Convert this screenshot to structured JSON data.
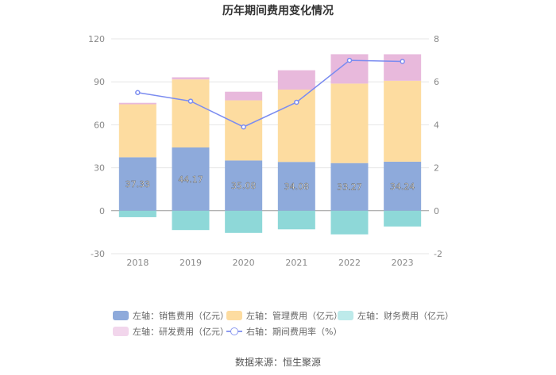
{
  "title": "历年期间费用变化情况",
  "source": "数据来源：恒生聚源",
  "chart_data": {
    "type": "bar",
    "stacked": true,
    "categories": [
      "2018",
      "2019",
      "2020",
      "2021",
      "2022",
      "2023"
    ],
    "left_axis": {
      "ylim": [
        -30,
        120
      ],
      "ticks": [
        "-30",
        "0",
        "30",
        "60",
        "90",
        "120"
      ]
    },
    "right_axis": {
      "ylim": [
        -2,
        8
      ],
      "ticks": [
        "-2",
        "0",
        "2",
        "4",
        "6",
        "8"
      ]
    },
    "series": [
      {
        "name": "左轴：销售费用（亿元）",
        "axis": "left",
        "color": "#8eaadb",
        "values": [
          37.33,
          44.17,
          35.08,
          34.08,
          33.27,
          34.24
        ],
        "labels": [
          "37.33",
          "44.17",
          "35.08",
          "34.08",
          "33.27",
          "34.24"
        ]
      },
      {
        "name": "左轴：管理费用（亿元）",
        "axis": "left",
        "color": "#fddca0",
        "values": [
          37.0,
          47.5,
          42.0,
          50.5,
          55.5,
          56.5
        ]
      },
      {
        "name": "左轴：财务费用（亿元）",
        "axis": "left",
        "color": "#8ed8d8",
        "values": [
          -4.5,
          -13.5,
          -15.5,
          -13.0,
          -16.5,
          -11.0
        ]
      },
      {
        "name": "左轴：研发费用（亿元）",
        "axis": "left",
        "color": "#e8b9dc",
        "values": [
          1.0,
          1.5,
          6.0,
          13.5,
          20.5,
          18.5
        ]
      },
      {
        "name": "右轴：期间费用率（%）",
        "axis": "right",
        "type": "line",
        "color": "#7b8cf0",
        "values": [
          5.5,
          5.1,
          3.9,
          5.05,
          7.0,
          6.95
        ]
      }
    ],
    "legend_position": "bottom",
    "grid": true
  }
}
